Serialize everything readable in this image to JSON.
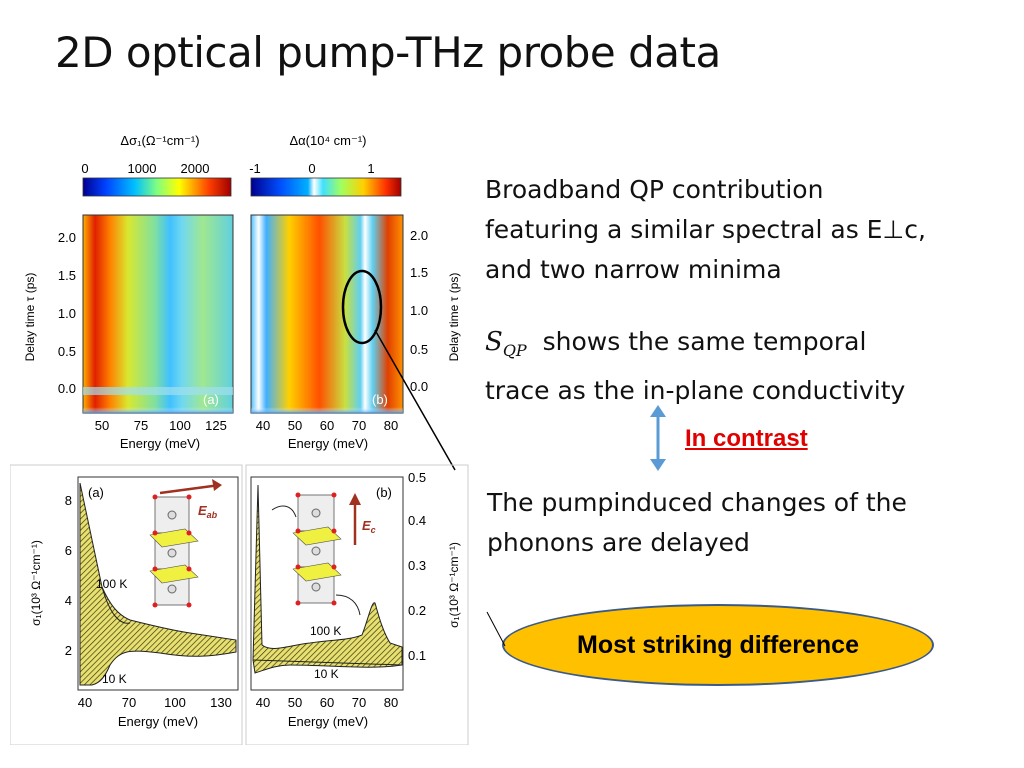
{
  "slide": {
    "title": "2D optical pump-THz probe data",
    "bullet1": [
      "Broadband QP contribution",
      "featuring a similar spectral as E⊥c,",
      "and two narrow minima"
    ],
    "sqp_symbol": "S",
    "sqp_sub": "QP",
    "bullet2_line1": "shows the same temporal",
    "bullet2_line2": "trace as the in-plane conductivity",
    "contrast_label": "In contrast",
    "bullet3": [
      "The pumpinduced changes of the",
      "phonons are delayed"
    ],
    "callout": "Most striking difference",
    "colors": {
      "contrast": "#e00000",
      "arrow": "#5b9bd5",
      "callout_fill": "#ffc000",
      "callout_border": "#3a5a8a"
    }
  },
  "figure": {
    "panel_a_top": {
      "colorbar_label": "Δσ₁(Ω⁻¹cm⁻¹)",
      "colorbar_ticks": [
        "0",
        "1000",
        "2000"
      ],
      "xlabel": "Energy (meV)",
      "xticks": [
        "50",
        "75",
        "100",
        "125"
      ],
      "ylabel": "Delay time τ (ps)",
      "yticks": [
        "2.0",
        "1.5",
        "1.0",
        "0.5",
        "0.0"
      ],
      "panel_label": "(a)"
    },
    "panel_b_top": {
      "colorbar_label": "Δα(10⁴ cm⁻¹)",
      "colorbar_ticks": [
        "-1",
        "0",
        "1"
      ],
      "xlabel": "Energy (meV)",
      "xticks": [
        "40",
        "50",
        "60",
        "70",
        "80"
      ],
      "ylabel": "Delay time τ (ps)",
      "yticks": [
        "2.0",
        "1.5",
        "1.0",
        "0.5",
        "0.0"
      ],
      "panel_label": "(b)"
    },
    "panel_a_bottom": {
      "ylabel": "σ₁(10³ Ω⁻¹cm⁻¹)",
      "yticks": [
        "8",
        "6",
        "4",
        "2"
      ],
      "xlabel": "Energy (meV)",
      "xticks": [
        "40",
        "70",
        "100",
        "130"
      ],
      "panel_label": "(a)",
      "label_100k": "100 K",
      "label_10k": "10 K",
      "field_label": "E",
      "field_sub": "ab"
    },
    "panel_b_bottom": {
      "ylabel": "σ₁(10³ Ω⁻¹cm⁻¹)",
      "yticks": [
        "0.5",
        "0.4",
        "0.3",
        "0.2",
        "0.1"
      ],
      "xlabel": "Energy (meV)",
      "xticks": [
        "40",
        "50",
        "60",
        "70",
        "80"
      ],
      "panel_label": "(b)",
      "label_100k": "100 K",
      "label_10k": "10 K",
      "field_label": "E",
      "field_sub": "c"
    }
  }
}
